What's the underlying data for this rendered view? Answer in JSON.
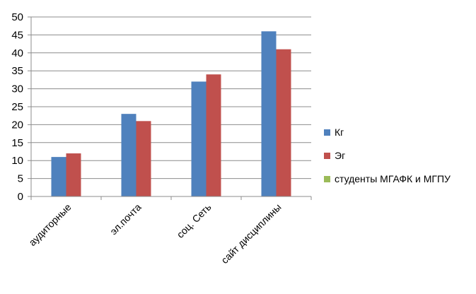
{
  "chart_data": {
    "type": "bar",
    "categories": [
      "аудиторные",
      "эл.почта",
      "соц. Сеть",
      "сайт дисциплины"
    ],
    "series": [
      {
        "name": "Кг",
        "values": [
          11,
          23,
          32,
          46
        ],
        "color": "#4F81BD"
      },
      {
        "name": "Эг",
        "values": [
          12,
          21,
          34,
          41
        ],
        "color": "#C0504D"
      },
      {
        "name": "студенты МГАФК и МГПУ",
        "values": [
          0,
          0,
          0,
          0
        ],
        "color": "#9BBB59"
      }
    ],
    "y_ticks": [
      "0",
      "5",
      "10",
      "15",
      "20",
      "25",
      "30",
      "35",
      "40",
      "45",
      "50"
    ],
    "ylim": [
      0,
      50
    ],
    "grid": true,
    "legend_position": "right"
  }
}
